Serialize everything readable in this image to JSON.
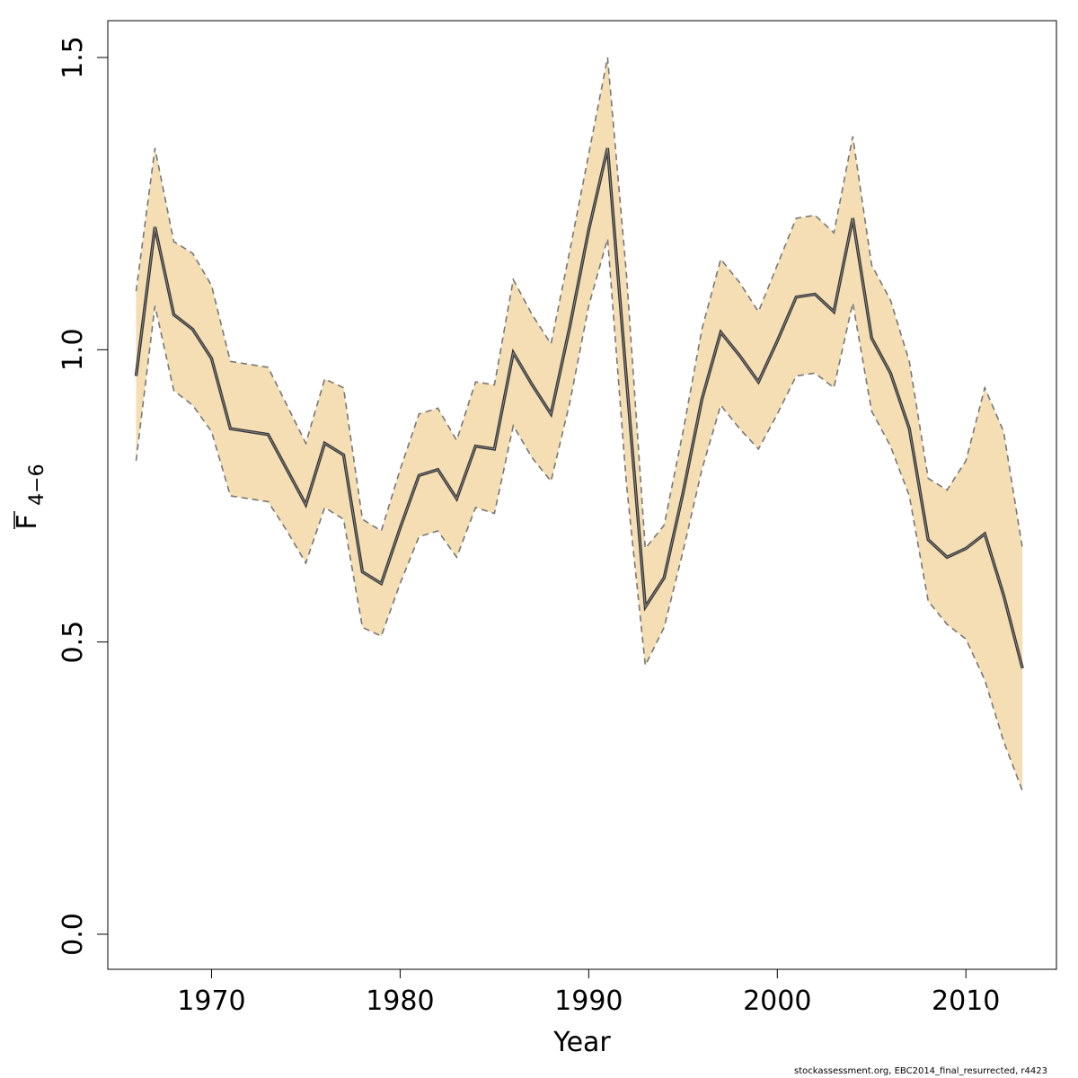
{
  "chart_data": {
    "type": "area",
    "xlabel": "Year",
    "ylabel": {
      "main": "F",
      "subscript": "4−6"
    },
    "xlim": [
      1964.5,
      2014.8
    ],
    "ylim": [
      -0.06,
      1.563
    ],
    "x_ticks": [
      1970,
      1980,
      1990,
      2000,
      2010
    ],
    "y_ticks": [
      0.0,
      0.5,
      1.0,
      1.5
    ],
    "y_tick_labels": [
      "0.0",
      "0.5",
      "1.0",
      "1.5"
    ],
    "grid": false,
    "legend": "none",
    "colors": {
      "band": "#f5deb3",
      "line": "#444444",
      "bound": "#777777"
    },
    "x": [
      1966,
      1967,
      1968,
      1969,
      1970,
      1971,
      1972,
      1973,
      1974,
      1975,
      1976,
      1977,
      1978,
      1979,
      1980,
      1981,
      1982,
      1983,
      1984,
      1985,
      1986,
      1987,
      1988,
      1989,
      1990,
      1991,
      1992,
      1993,
      1994,
      1995,
      1996,
      1997,
      1998,
      1999,
      2000,
      2001,
      2002,
      2003,
      2004,
      2005,
      2006,
      2007,
      2008,
      2009,
      2010,
      2011,
      2012,
      2013
    ],
    "series": [
      {
        "role": "estimate",
        "values": [
          0.955,
          1.21,
          1.06,
          1.035,
          0.985,
          0.865,
          0.86,
          0.855,
          0.795,
          0.735,
          0.84,
          0.82,
          0.62,
          0.6,
          0.695,
          0.785,
          0.795,
          0.745,
          0.835,
          0.83,
          0.995,
          0.94,
          0.89,
          1.04,
          1.205,
          1.345,
          0.95,
          0.56,
          0.61,
          0.755,
          0.915,
          1.03,
          0.99,
          0.945,
          1.015,
          1.09,
          1.095,
          1.065,
          1.225,
          1.02,
          0.96,
          0.865,
          0.675,
          0.645,
          0.66,
          0.685,
          0.58,
          0.455
        ]
      },
      {
        "role": "upper",
        "values": [
          1.1,
          1.345,
          1.185,
          1.165,
          1.11,
          0.98,
          0.975,
          0.97,
          0.905,
          0.84,
          0.95,
          0.935,
          0.71,
          0.69,
          0.795,
          0.89,
          0.9,
          0.845,
          0.945,
          0.94,
          1.12,
          1.06,
          1.01,
          1.17,
          1.335,
          1.5,
          1.13,
          0.66,
          0.7,
          0.86,
          1.035,
          1.155,
          1.115,
          1.065,
          1.145,
          1.225,
          1.23,
          1.2,
          1.365,
          1.145,
          1.085,
          0.98,
          0.78,
          0.76,
          0.81,
          0.935,
          0.86,
          0.66
        ]
      },
      {
        "role": "lower",
        "values": [
          0.81,
          1.075,
          0.93,
          0.905,
          0.86,
          0.75,
          0.745,
          0.74,
          0.69,
          0.635,
          0.73,
          0.71,
          0.525,
          0.51,
          0.6,
          0.68,
          0.69,
          0.645,
          0.73,
          0.72,
          0.87,
          0.815,
          0.775,
          0.91,
          1.075,
          1.19,
          0.77,
          0.46,
          0.525,
          0.655,
          0.795,
          0.905,
          0.865,
          0.83,
          0.89,
          0.955,
          0.96,
          0.935,
          1.08,
          0.895,
          0.835,
          0.75,
          0.57,
          0.53,
          0.505,
          0.435,
          0.33,
          0.245
        ]
      }
    ]
  },
  "footer": "stockassessment.org, EBC2014_final_resurrected, r4423"
}
